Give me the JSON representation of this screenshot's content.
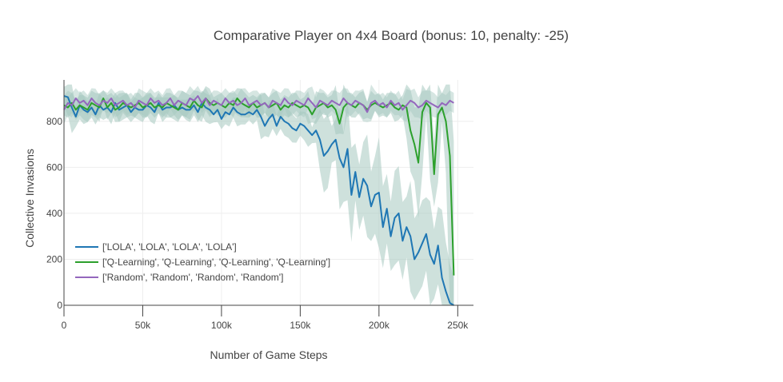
{
  "chart_data": {
    "type": "line",
    "title": "Comparative Player on 4x4 Board (bonus: 10, penalty: -25)",
    "xlabel": "Number of Game Steps",
    "ylabel": "Collective Invasions",
    "xlim": [
      0,
      260000
    ],
    "ylim": [
      0,
      980
    ],
    "x_ticks": [
      0,
      50000,
      100000,
      150000,
      200000,
      250000
    ],
    "x_tick_labels": [
      "0",
      "50k",
      "100k",
      "150k",
      "200k",
      "250k"
    ],
    "y_ticks": [
      0,
      200,
      400,
      600,
      800
    ],
    "y_tick_labels": [
      "0",
      "200",
      "400",
      "600",
      "800"
    ],
    "grid": true,
    "legend_position": "bottom-left",
    "band_color": "#a5c8bf",
    "series": [
      {
        "name": "['LOLA', 'LOLA', 'LOLA', 'LOLA']",
        "color": "#1f77b4",
        "x": [
          0,
          2500,
          5000,
          7500,
          10000,
          12500,
          15000,
          17500,
          20000,
          22500,
          25000,
          27500,
          30000,
          32500,
          35000,
          37500,
          40000,
          42500,
          45000,
          47500,
          50000,
          52500,
          55000,
          57500,
          60000,
          62500,
          65000,
          67500,
          70000,
          72500,
          75000,
          77500,
          80000,
          82500,
          85000,
          87500,
          90000,
          92500,
          95000,
          97500,
          100000,
          102500,
          105000,
          107500,
          110000,
          112500,
          115000,
          117500,
          120000,
          122500,
          125000,
          127500,
          130000,
          132500,
          135000,
          137500,
          140000,
          142500,
          145000,
          147500,
          150000,
          152500,
          155000,
          157500,
          160000,
          162500,
          165000,
          167500,
          170000,
          172500,
          175000,
          177500,
          180000,
          182500,
          185000,
          187500,
          190000,
          192500,
          195000,
          197500,
          200000,
          202500,
          205000,
          207500,
          210000,
          212500,
          215000,
          217500,
          220000,
          222500,
          225000,
          227500,
          230000,
          232500,
          235000,
          237500,
          240000,
          242500,
          245000,
          247500
        ],
        "y": [
          910,
          905,
          860,
          820,
          870,
          850,
          840,
          860,
          830,
          870,
          850,
          860,
          840,
          880,
          850,
          860,
          870,
          840,
          860,
          850,
          850,
          870,
          860,
          840,
          880,
          850,
          860,
          860,
          870,
          850,
          860,
          850,
          850,
          870,
          840,
          880,
          860,
          850,
          830,
          850,
          810,
          840,
          830,
          860,
          840,
          830,
          830,
          840,
          830,
          850,
          820,
          780,
          810,
          830,
          780,
          820,
          800,
          790,
          770,
          760,
          790,
          780,
          760,
          740,
          760,
          720,
          650,
          670,
          700,
          720,
          640,
          600,
          680,
          480,
          580,
          470,
          550,
          520,
          430,
          480,
          490,
          340,
          420,
          300,
          380,
          400,
          280,
          340,
          300,
          200,
          230,
          270,
          310,
          220,
          180,
          260,
          120,
          60,
          10,
          0
        ]
      },
      {
        "name": "['Q-Learning', 'Q-Learning', 'Q-Learning', 'Q-Learning']",
        "color": "#2ca02c",
        "x": [
          0,
          2500,
          5000,
          7500,
          10000,
          12500,
          15000,
          17500,
          20000,
          22500,
          25000,
          27500,
          30000,
          32500,
          35000,
          37500,
          40000,
          42500,
          45000,
          47500,
          50000,
          52500,
          55000,
          57500,
          60000,
          62500,
          65000,
          67500,
          70000,
          72500,
          75000,
          77500,
          80000,
          82500,
          85000,
          87500,
          90000,
          92500,
          95000,
          97500,
          100000,
          102500,
          105000,
          107500,
          110000,
          112500,
          115000,
          117500,
          120000,
          122500,
          125000,
          127500,
          130000,
          132500,
          135000,
          137500,
          140000,
          142500,
          145000,
          147500,
          150000,
          152500,
          155000,
          157500,
          160000,
          162500,
          165000,
          167500,
          170000,
          172500,
          175000,
          177500,
          180000,
          182500,
          185000,
          187500,
          190000,
          192500,
          195000,
          197500,
          200000,
          202500,
          205000,
          207500,
          210000,
          212500,
          215000,
          217500,
          220000,
          222500,
          225000,
          227500,
          230000,
          232500,
          235000,
          237500,
          240000,
          242500,
          245000,
          247500
        ],
        "y": [
          870,
          860,
          880,
          850,
          870,
          860,
          850,
          880,
          870,
          860,
          900,
          860,
          880,
          850,
          860,
          880,
          870,
          860,
          870,
          880,
          860,
          870,
          880,
          860,
          870,
          860,
          880,
          870,
          860,
          850,
          880,
          870,
          860,
          890,
          870,
          860,
          900,
          880,
          870,
          880,
          870,
          860,
          880,
          870,
          900,
          880,
          870,
          860,
          880,
          860,
          870,
          880,
          860,
          870,
          880,
          850,
          870,
          860,
          880,
          870,
          860,
          870,
          860,
          830,
          860,
          870,
          880,
          860,
          870,
          850,
          790,
          860,
          880,
          870,
          860,
          880,
          870,
          850,
          870,
          880,
          870,
          860,
          870,
          880,
          860,
          850,
          870,
          860,
          760,
          700,
          620,
          840,
          880,
          860,
          570,
          830,
          860,
          800,
          650,
          130
        ]
      },
      {
        "name": "['Random', 'Random', 'Random', 'Random']",
        "color": "#9467bd",
        "x": [
          0,
          2500,
          5000,
          7500,
          10000,
          12500,
          15000,
          17500,
          20000,
          22500,
          25000,
          27500,
          30000,
          32500,
          35000,
          37500,
          40000,
          42500,
          45000,
          47500,
          50000,
          52500,
          55000,
          57500,
          60000,
          62500,
          65000,
          67500,
          70000,
          72500,
          75000,
          77500,
          80000,
          82500,
          85000,
          87500,
          90000,
          92500,
          95000,
          97500,
          100000,
          102500,
          105000,
          107500,
          110000,
          112500,
          115000,
          117500,
          120000,
          122500,
          125000,
          127500,
          130000,
          132500,
          135000,
          137500,
          140000,
          142500,
          145000,
          147500,
          150000,
          152500,
          155000,
          157500,
          160000,
          162500,
          165000,
          167500,
          170000,
          172500,
          175000,
          177500,
          180000,
          182500,
          185000,
          187500,
          190000,
          192500,
          195000,
          197500,
          200000,
          202500,
          205000,
          207500,
          210000,
          212500,
          215000,
          217500,
          220000,
          222500,
          225000,
          227500,
          230000,
          232500,
          235000,
          237500,
          240000,
          242500,
          245000,
          247500
        ],
        "y": [
          850,
          880,
          870,
          900,
          880,
          890,
          870,
          900,
          880,
          870,
          890,
          880,
          900,
          870,
          880,
          890,
          870,
          880,
          860,
          890,
          880,
          870,
          900,
          880,
          890,
          870,
          880,
          900,
          870,
          890,
          880,
          870,
          900,
          890,
          910,
          880,
          900,
          870,
          890,
          880,
          870,
          900,
          880,
          890,
          870,
          880,
          900,
          870,
          880,
          890,
          870,
          880,
          860,
          890,
          880,
          870,
          900,
          880,
          870,
          890,
          880,
          870,
          900,
          880,
          860,
          890,
          880,
          870,
          890,
          880,
          870,
          900,
          880,
          870,
          890,
          880,
          870,
          840,
          880,
          890,
          870,
          880,
          860,
          890,
          870,
          880,
          850,
          870,
          890,
          880,
          860,
          870,
          890,
          880,
          870,
          860,
          880,
          870,
          890,
          880
        ]
      }
    ]
  }
}
